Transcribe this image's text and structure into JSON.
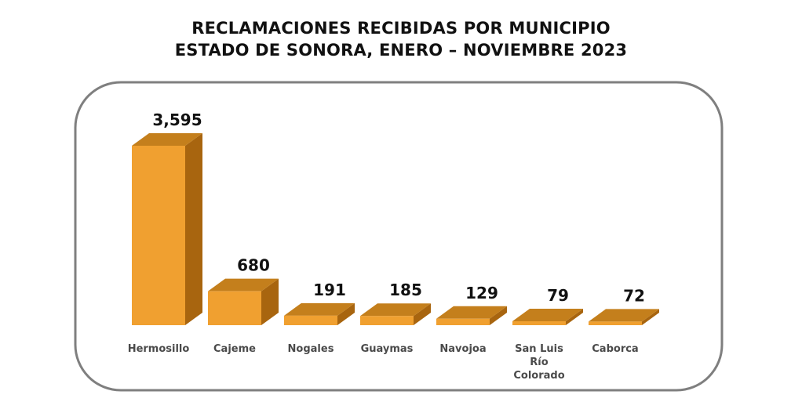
{
  "chart_data": {
    "type": "bar",
    "title": "RECLAMACIONES RECIBIDAS POR MUNICIPIO",
    "subtitle": "ESTADO DE SONORA, ENERO – NOVIEMBRE 2023",
    "categories": [
      "Hermosillo",
      "Cajeme",
      "Nogales",
      "Guaymas",
      "Navojoa",
      "San Luis Río Colorado",
      "Caborca"
    ],
    "category_lines": [
      [
        "Hermosillo"
      ],
      [
        "Cajeme"
      ],
      [
        "Nogales"
      ],
      [
        "Guaymas"
      ],
      [
        "Navojoa"
      ],
      [
        "San Luis",
        "Río",
        "Colorado"
      ],
      [
        "Caborca"
      ]
    ],
    "values": [
      3595,
      680,
      191,
      185,
      129,
      79,
      72
    ],
    "value_labels": [
      "3,595",
      "680",
      "191",
      "185",
      "129",
      "79",
      "72"
    ],
    "xlabel": "",
    "ylabel": "",
    "ylim": [
      0,
      3595
    ],
    "grid": false,
    "legend": "none",
    "style": "3d-bar",
    "colors": {
      "front": "#F0A030",
      "top": "#C47F1C",
      "side": "#A8650F",
      "frame": "#7F7F7F"
    }
  }
}
